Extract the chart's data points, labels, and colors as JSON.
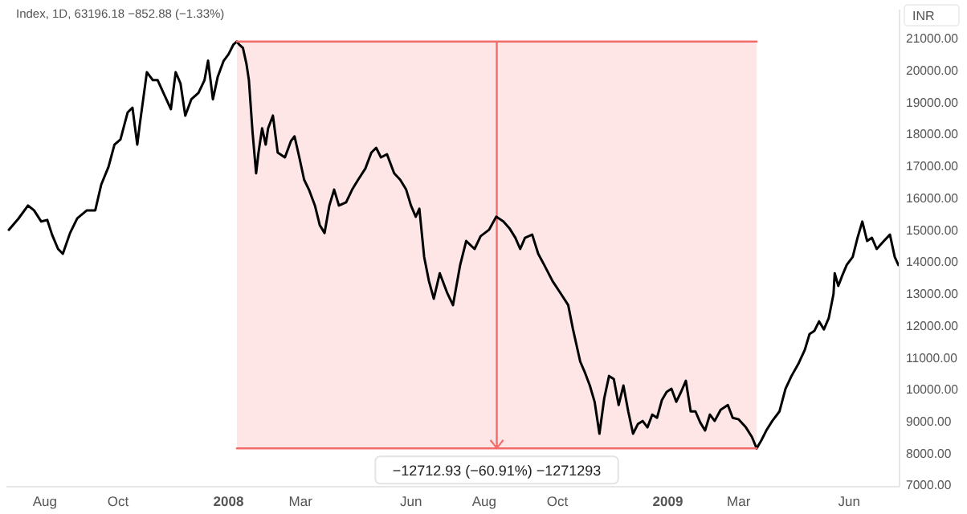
{
  "chart_data": {
    "type": "line",
    "title": "Index, 1D,  63196.18  −852.88 (−1.33%)",
    "ylabel": "INR",
    "x": [
      "2007-07-02",
      "2007-07-10",
      "2007-07-18",
      "2007-07-23",
      "2007-07-29",
      "2007-08-03",
      "2007-08-07",
      "2007-08-12",
      "2007-08-16",
      "2007-08-22",
      "2007-08-28",
      "2007-09-05",
      "2007-09-12",
      "2007-09-17",
      "2007-09-23",
      "2007-09-28",
      "2007-10-03",
      "2007-10-09",
      "2007-10-13",
      "2007-10-17",
      "2007-10-19",
      "2007-10-25",
      "2007-10-30",
      "2007-11-03",
      "2007-11-09",
      "2007-11-14",
      "2007-11-18",
      "2007-11-22",
      "2007-11-26",
      "2007-12-01",
      "2007-12-07",
      "2007-12-12",
      "2007-12-15",
      "2007-12-19",
      "2007-12-23",
      "2007-12-28",
      "2008-01-01",
      "2008-01-05",
      "2008-01-08",
      "2008-01-10",
      "2008-01-13",
      "2008-01-16",
      "2008-01-18",
      "2008-01-21",
      "2008-01-24",
      "2008-01-26",
      "2008-01-29",
      "2008-02-01",
      "2008-02-03",
      "2008-02-07",
      "2008-02-11",
      "2008-02-17",
      "2008-02-22",
      "2008-02-25",
      "2008-02-29",
      "2008-03-04",
      "2008-03-08",
      "2008-03-13",
      "2008-03-17",
      "2008-03-21",
      "2008-03-25",
      "2008-03-29",
      "2008-04-02",
      "2008-04-08",
      "2008-04-13",
      "2008-04-18",
      "2008-04-24",
      "2008-04-29",
      "2008-05-03",
      "2008-05-07",
      "2008-05-12",
      "2008-05-18",
      "2008-05-23",
      "2008-05-28",
      "2008-06-01",
      "2008-06-05",
      "2008-06-08",
      "2008-06-12",
      "2008-06-16",
      "2008-06-20",
      "2008-06-25",
      "2008-07-01",
      "2008-07-06",
      "2008-07-12",
      "2008-07-17",
      "2008-07-24",
      "2008-07-29",
      "2008-08-05",
      "2008-08-11",
      "2008-08-17",
      "2008-08-22",
      "2008-08-27",
      "2008-08-31",
      "2008-09-04",
      "2008-09-10",
      "2008-09-15",
      "2008-09-20",
      "2008-09-27",
      "2008-10-04",
      "2008-10-10",
      "2008-10-14",
      "2008-10-20",
      "2008-10-24",
      "2008-10-28",
      "2008-11-01",
      "2008-11-05",
      "2008-11-09",
      "2008-11-13",
      "2008-11-17",
      "2008-11-21",
      "2008-11-25",
      "2008-11-29",
      "2008-12-03",
      "2008-12-07",
      "2008-12-11",
      "2008-12-15",
      "2008-12-19",
      "2008-12-23",
      "2008-12-27",
      "2008-12-31",
      "2009-01-04",
      "2009-01-08",
      "2009-01-12",
      "2009-01-16",
      "2009-01-20",
      "2009-01-24",
      "2009-01-28",
      "2009-02-01",
      "2009-02-05",
      "2009-02-09",
      "2009-02-14",
      "2009-02-20",
      "2009-02-24",
      "2009-03-01",
      "2009-03-07",
      "2009-03-12",
      "2009-03-16",
      "2009-03-20",
      "2009-03-24",
      "2009-03-29",
      "2009-04-04",
      "2009-04-09",
      "2009-04-14",
      "2009-04-20",
      "2009-04-25",
      "2009-04-29",
      "2009-05-03",
      "2009-05-07",
      "2009-05-11",
      "2009-05-15",
      "2009-05-19",
      "2009-05-20",
      "2009-05-23",
      "2009-05-26",
      "2009-05-30",
      "2009-06-04",
      "2009-06-08",
      "2009-06-12",
      "2009-06-16",
      "2009-06-20",
      "2009-06-24",
      "2009-06-30",
      "2009-07-05",
      "2009-07-09",
      "2009-07-12"
    ],
    "series": [
      {
        "color": "#000000",
        "values": [
          15000,
          15350,
          15760,
          15610,
          15260,
          15310,
          14850,
          14400,
          14250,
          14900,
          15360,
          15610,
          15610,
          16420,
          16970,
          17670,
          17830,
          18680,
          18830,
          17670,
          18280,
          19940,
          19690,
          19690,
          19190,
          18780,
          19940,
          19590,
          18580,
          19090,
          19290,
          19690,
          20300,
          19090,
          19790,
          20300,
          20500,
          20800,
          20900,
          20800,
          20700,
          20190,
          19690,
          18080,
          16770,
          17420,
          18180,
          17670,
          18180,
          18580,
          17420,
          17270,
          17780,
          17930,
          17270,
          16570,
          16260,
          15760,
          15150,
          14900,
          15760,
          16260,
          15760,
          15860,
          16260,
          16570,
          16920,
          17420,
          17570,
          17270,
          17370,
          16770,
          16570,
          16260,
          15760,
          15410,
          15660,
          14150,
          13390,
          12840,
          13640,
          13040,
          12640,
          13900,
          14650,
          14400,
          14800,
          15000,
          15410,
          15260,
          15050,
          14750,
          14400,
          14750,
          14850,
          14250,
          13900,
          13390,
          12990,
          12640,
          11880,
          10870,
          10520,
          10120,
          9610,
          8610,
          9720,
          10420,
          10320,
          9510,
          10120,
          9310,
          8610,
          8910,
          9010,
          8810,
          9210,
          9110,
          9660,
          9920,
          10020,
          9610,
          9920,
          10270,
          9310,
          9310,
          8960,
          8710,
          9210,
          9010,
          9360,
          9510,
          9110,
          9060,
          8810,
          8510,
          8150,
          8410,
          8710,
          9010,
          9310,
          10020,
          10420,
          10820,
          11230,
          11730,
          11830,
          12130,
          11880,
          12230,
          12990,
          13640,
          13240,
          13540,
          13900,
          14150,
          14750,
          15260,
          14650,
          14750,
          14400,
          14650,
          14850,
          14150,
          13900
        ]
      },
      {
        "color": "#f26b6b",
        "x": [
          "2008-01-08",
          "2009-03-16"
        ],
        "values": [
          20900,
          20900
        ]
      },
      {
        "color": "#f26b6b",
        "x": [
          "2008-01-08",
          "2009-03-16"
        ],
        "values": [
          8150,
          8150
        ]
      }
    ],
    "xlim": [
      "2007-06-30",
      "2009-07-13"
    ],
    "xticks": [
      {
        "value": "2007-08-01",
        "label": "Aug"
      },
      {
        "value": "2007-10-01",
        "label": "Oct"
      },
      {
        "value": "2008-01-01",
        "label": "2008"
      },
      {
        "value": "2008-03-01",
        "label": "Mar"
      },
      {
        "value": "2008-06-01",
        "label": "Jun"
      },
      {
        "value": "2008-08-01",
        "label": "Aug"
      },
      {
        "value": "2008-10-01",
        "label": "Oct"
      },
      {
        "value": "2009-01-01",
        "label": "2009"
      },
      {
        "value": "2009-03-01",
        "label": "Mar"
      },
      {
        "value": "2009-06-01",
        "label": "Jun"
      }
    ],
    "ylim": [
      6950,
      21900
    ],
    "yticks": [
      {
        "value": 7000,
        "label": "7000.00"
      },
      {
        "value": 8000,
        "label": "8000.00"
      },
      {
        "value": 9000,
        "label": "9000.00"
      },
      {
        "value": 10000,
        "label": "10000.00"
      },
      {
        "value": 11000,
        "label": "11000.00"
      },
      {
        "value": 12000,
        "label": "12000.00"
      },
      {
        "value": 13000,
        "label": "13000.00"
      },
      {
        "value": 14000,
        "label": "14000.00"
      },
      {
        "value": 15000,
        "label": "15000.00"
      },
      {
        "value": 16000,
        "label": "16000.00"
      },
      {
        "value": 17000,
        "label": "17000.00"
      },
      {
        "value": 18000,
        "label": "18000.00"
      },
      {
        "value": 19000,
        "label": "19000.00"
      },
      {
        "value": 20000,
        "label": "20000.00"
      },
      {
        "value": 21000,
        "label": "21000.00"
      }
    ],
    "bands": [
      {
        "axis": "x",
        "from": "2008-01-08",
        "to": "2009-03-16",
        "label": "−12712.93 (−60.91%) −1271293",
        "color": "#ffe6e6"
      }
    ],
    "grid": false,
    "marker": "none",
    "line_style": "solid"
  }
}
